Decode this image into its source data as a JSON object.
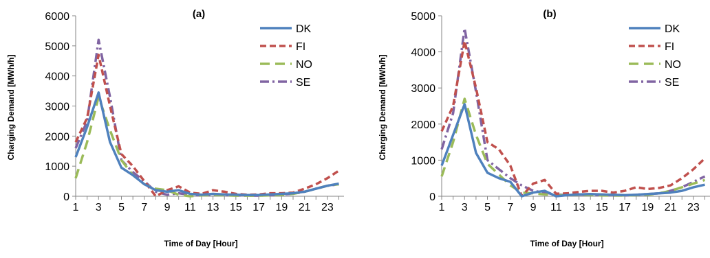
{
  "chart_data": [
    {
      "type": "line",
      "title": "(a)",
      "xlabel": "Time of Day [Hour]",
      "ylabel": "Charging Demand [MWh/h]",
      "ylim": [
        0,
        6000
      ],
      "yticks": [
        0,
        1000,
        2000,
        3000,
        4000,
        5000,
        6000
      ],
      "xticks": [
        1,
        3,
        5,
        7,
        9,
        11,
        13,
        15,
        17,
        19,
        21,
        23
      ],
      "x": [
        1,
        2,
        3,
        4,
        5,
        6,
        7,
        8,
        9,
        10,
        11,
        12,
        13,
        14,
        15,
        16,
        17,
        18,
        19,
        20,
        21,
        22,
        23,
        24
      ],
      "grid": false,
      "legend_position": "top-right",
      "series": [
        {
          "name": "DK",
          "color": "#4f81bd",
          "dash": "solid",
          "values": [
            1300,
            2300,
            3450,
            1800,
            950,
            700,
            400,
            200,
            150,
            200,
            80,
            50,
            80,
            60,
            50,
            40,
            40,
            60,
            80,
            100,
            150,
            250,
            350,
            420
          ]
        },
        {
          "name": "FI",
          "color": "#c0504d",
          "dash": "dashed",
          "values": [
            1800,
            2600,
            4700,
            3000,
            1400,
            1000,
            500,
            0,
            200,
            330,
            120,
            80,
            200,
            150,
            80,
            50,
            60,
            100,
            100,
            120,
            250,
            400,
            600,
            850
          ]
        },
        {
          "name": "NO",
          "color": "#9bbb59",
          "dash": "longdash",
          "values": [
            600,
            1800,
            3300,
            2200,
            1200,
            700,
            400,
            250,
            200,
            50,
            0,
            30,
            40,
            30,
            20,
            20,
            20,
            30,
            40,
            80,
            150,
            250,
            350,
            400
          ]
        },
        {
          "name": "SE",
          "color": "#8064a2",
          "dash": "dashdot",
          "values": [
            1600,
            2500,
            5200,
            3300,
            1200,
            800,
            500,
            150,
            50,
            100,
            50,
            30,
            50,
            40,
            30,
            20,
            20,
            40,
            60,
            80,
            150,
            250,
            350,
            400
          ]
        }
      ]
    },
    {
      "type": "line",
      "title": "(b)",
      "xlabel": "Time of Day [Hour]",
      "ylabel": "Charging Demand [MWh/h]",
      "ylim": [
        0,
        5000
      ],
      "yticks": [
        0,
        1000,
        2000,
        3000,
        4000,
        5000
      ],
      "xticks": [
        1,
        3,
        5,
        7,
        9,
        11,
        13,
        15,
        17,
        19,
        21,
        23
      ],
      "x": [
        1,
        2,
        3,
        4,
        5,
        6,
        7,
        8,
        9,
        10,
        11,
        12,
        13,
        14,
        15,
        16,
        17,
        18,
        19,
        20,
        21,
        22,
        23,
        24
      ],
      "grid": false,
      "legend_position": "top-right",
      "series": [
        {
          "name": "DK",
          "color": "#4f81bd",
          "dash": "solid",
          "values": [
            850,
            1700,
            2550,
            1200,
            650,
            500,
            400,
            0,
            100,
            150,
            0,
            30,
            50,
            60,
            50,
            40,
            30,
            40,
            60,
            80,
            100,
            150,
            250,
            320
          ]
        },
        {
          "name": "FI",
          "color": "#c0504d",
          "dash": "dashed",
          "values": [
            1800,
            2500,
            4300,
            3000,
            1500,
            1300,
            850,
            0,
            350,
            450,
            70,
            80,
            120,
            150,
            150,
            100,
            150,
            250,
            200,
            230,
            300,
            500,
            750,
            1050
          ]
        },
        {
          "name": "NO",
          "color": "#9bbb59",
          "dash": "longdash",
          "values": [
            550,
            1500,
            2700,
            1700,
            900,
            600,
            300,
            100,
            80,
            50,
            30,
            30,
            40,
            30,
            20,
            20,
            20,
            30,
            40,
            80,
            150,
            250,
            350,
            450
          ]
        },
        {
          "name": "SE",
          "color": "#8064a2",
          "dash": "dashdot",
          "values": [
            1300,
            2300,
            4650,
            2900,
            1000,
            750,
            500,
            300,
            150,
            100,
            50,
            30,
            50,
            40,
            30,
            20,
            20,
            40,
            60,
            80,
            150,
            250,
            400,
            550
          ]
        }
      ]
    }
  ]
}
